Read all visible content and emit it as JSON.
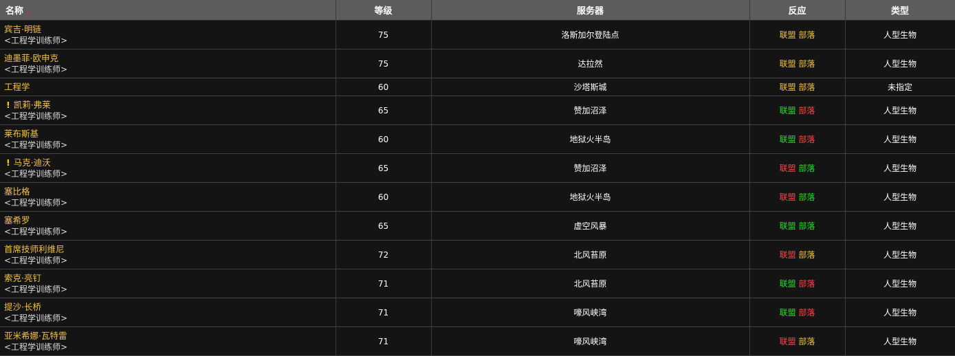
{
  "columns": [
    "名称",
    "等级",
    "服务器",
    "反应",
    "类型"
  ],
  "sort_indicator": "△",
  "colors": {
    "yellow": "#f0c040",
    "green": "#22dd22",
    "red": "#ff4444"
  },
  "rows": [
    {
      "name": "宾吉·明链",
      "subtitle": "<工程学训练师>",
      "quest": false,
      "level": "75",
      "server": "洛斯加尔登陆点",
      "alliance": "联盟",
      "horde": "部落",
      "alliance_color": "yellow",
      "horde_color": "yellow",
      "type": "人型生物"
    },
    {
      "name": "迪墨菲·欧申克",
      "subtitle": "<工程学训练师>",
      "quest": false,
      "level": "75",
      "server": "达拉然",
      "alliance": "联盟",
      "horde": "部落",
      "alliance_color": "yellow",
      "horde_color": "yellow",
      "type": "人型生物"
    },
    {
      "name": "工程学",
      "subtitle": "",
      "quest": false,
      "level": "60",
      "server": "沙塔斯城",
      "alliance": "联盟",
      "horde": "部落",
      "alliance_color": "yellow",
      "horde_color": "yellow",
      "type": "未指定"
    },
    {
      "name": "凯莉·弗莱",
      "subtitle": "<工程学训练师>",
      "quest": true,
      "level": "65",
      "server": "赞加沼泽",
      "alliance": "联盟",
      "horde": "部落",
      "alliance_color": "green",
      "horde_color": "red",
      "type": "人型生物"
    },
    {
      "name": "莱布斯基",
      "subtitle": "<工程学训练师>",
      "quest": false,
      "level": "60",
      "server": "地狱火半岛",
      "alliance": "联盟",
      "horde": "部落",
      "alliance_color": "green",
      "horde_color": "red",
      "type": "人型生物"
    },
    {
      "name": "马克·迪沃",
      "subtitle": "<工程学训练师>",
      "quest": true,
      "level": "65",
      "server": "赞加沼泽",
      "alliance": "联盟",
      "horde": "部落",
      "alliance_color": "red",
      "horde_color": "green",
      "type": "人型生物"
    },
    {
      "name": "塞比格",
      "subtitle": "<工程学训练师>",
      "quest": false,
      "level": "60",
      "server": "地狱火半岛",
      "alliance": "联盟",
      "horde": "部落",
      "alliance_color": "red",
      "horde_color": "green",
      "type": "人型生物"
    },
    {
      "name": "塞希罗",
      "subtitle": "<工程学训练师>",
      "quest": false,
      "level": "65",
      "server": "虚空风暴",
      "alliance": "联盟",
      "horde": "部落",
      "alliance_color": "green",
      "horde_color": "green",
      "type": "人型生物"
    },
    {
      "name": "首席技师利维尼",
      "subtitle": "<工程学训练师>",
      "quest": false,
      "level": "72",
      "server": "北风苔原",
      "alliance": "联盟",
      "horde": "部落",
      "alliance_color": "red",
      "horde_color": "yellow",
      "type": "人型生物"
    },
    {
      "name": "索克·亮钉",
      "subtitle": "<工程学训练师>",
      "quest": false,
      "level": "71",
      "server": "北风苔原",
      "alliance": "联盟",
      "horde": "部落",
      "alliance_color": "green",
      "horde_color": "red",
      "type": "人型生物"
    },
    {
      "name": "提沙·长桥",
      "subtitle": "<工程学训练师>",
      "quest": false,
      "level": "71",
      "server": "嚎风峡湾",
      "alliance": "联盟",
      "horde": "部落",
      "alliance_color": "green",
      "horde_color": "red",
      "type": "人型生物"
    },
    {
      "name": "亚米希娜·瓦特雷",
      "subtitle": "<工程学训练师>",
      "quest": false,
      "level": "71",
      "server": "嚎风峡湾",
      "alliance": "联盟",
      "horde": "部落",
      "alliance_color": "red",
      "horde_color": "yellow",
      "type": "人型生物"
    }
  ]
}
